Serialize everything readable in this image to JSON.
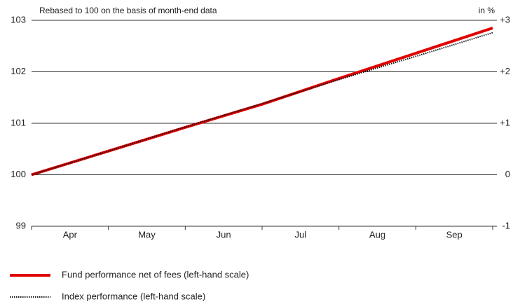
{
  "chart_data": {
    "type": "line",
    "subtitle": "Rebased to 100 on the basis of month-end data",
    "y2_label": "in %",
    "categories": [
      null,
      "Apr",
      "May",
      "Jun",
      "Jul",
      "Aug",
      "Sep"
    ],
    "series": [
      {
        "name": "Fund performance net of fees (left-hand scale)",
        "color": "#e00000",
        "style": "solid",
        "values": [
          100,
          100.46,
          100.92,
          101.37,
          101.87,
          102.36,
          102.85
        ]
      },
      {
        "name": "Index performance (left-hand scale)",
        "color": "#111111",
        "style": "dotted",
        "values": [
          100,
          100.46,
          100.93,
          101.38,
          101.85,
          102.3,
          102.76
        ]
      }
    ],
    "ylim": [
      99,
      103
    ],
    "yticks": [
      99,
      100,
      101,
      102,
      103
    ],
    "y2lim": [
      -1,
      3
    ],
    "y2ticks": [
      -1,
      0,
      {
        "value": 1,
        "label": "+1"
      },
      {
        "value": 2,
        "label": "+2"
      },
      {
        "value": 3,
        "label": "+3"
      }
    ],
    "grid": true
  }
}
